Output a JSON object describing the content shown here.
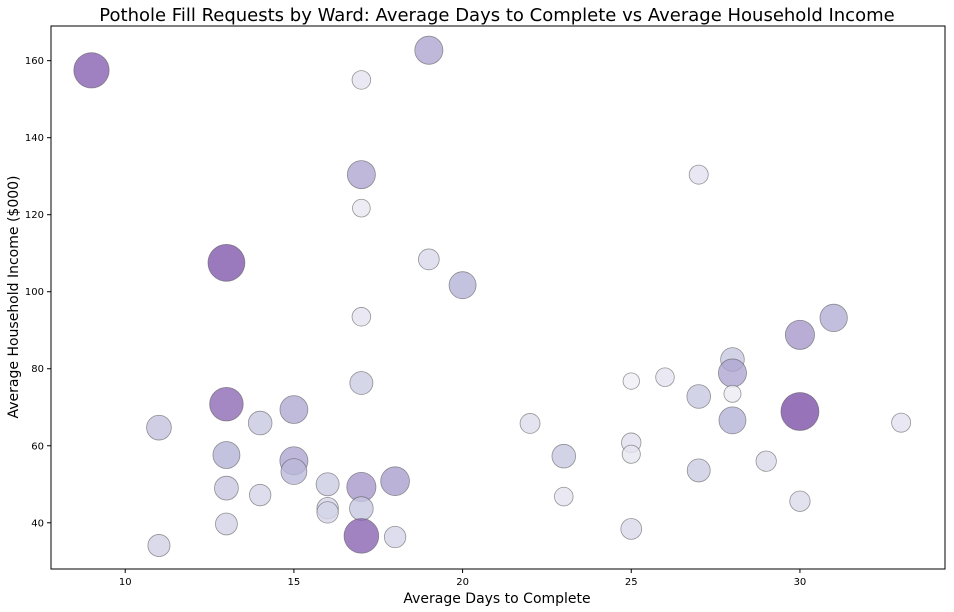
{
  "chart_data": {
    "type": "scatter",
    "title": "Pothole Fill Requests by Ward: Average Days to Complete vs Average Household Income",
    "xlabel": "Average Days to Complete",
    "ylabel": "Average Household Income ($000)",
    "xlim": [
      7.8,
      34.3
    ],
    "ylim": [
      28,
      169
    ],
    "xticks": [
      10,
      15,
      20,
      25,
      30
    ],
    "yticks": [
      40,
      60,
      80,
      100,
      120,
      140,
      160
    ],
    "grid": false,
    "bubble_size_range": [
      0,
      1
    ],
    "colormap": [
      "#f2f0f7",
      "#d4d4e8",
      "#b4b2d6",
      "#8f6db8",
      "#7a4da6"
    ],
    "points": [
      {
        "x": 9,
        "y": 157.5,
        "s": 0.88
      },
      {
        "x": 11,
        "y": 64.7,
        "s": 0.4
      },
      {
        "x": 11,
        "y": 34.1,
        "s": 0.28
      },
      {
        "x": 13,
        "y": 107.5,
        "s": 0.95
      },
      {
        "x": 13,
        "y": 70.8,
        "s": 0.8
      },
      {
        "x": 13,
        "y": 57.6,
        "s": 0.5
      },
      {
        "x": 13,
        "y": 49.0,
        "s": 0.36
      },
      {
        "x": 13,
        "y": 39.7,
        "s": 0.27
      },
      {
        "x": 14,
        "y": 65.9,
        "s": 0.35
      },
      {
        "x": 14,
        "y": 47.2,
        "s": 0.25
      },
      {
        "x": 15,
        "y": 69.4,
        "s": 0.54
      },
      {
        "x": 15,
        "y": 56.1,
        "s": 0.55
      },
      {
        "x": 15,
        "y": 53.3,
        "s": 0.45
      },
      {
        "x": 16,
        "y": 50.0,
        "s": 0.32
      },
      {
        "x": 16,
        "y": 43.8,
        "s": 0.25
      },
      {
        "x": 16,
        "y": 42.7,
        "s": 0.25
      },
      {
        "x": 17,
        "y": 155.0,
        "s": 0.12
      },
      {
        "x": 17,
        "y": 130.4,
        "s": 0.55
      },
      {
        "x": 17,
        "y": 121.7,
        "s": 0.08
      },
      {
        "x": 17,
        "y": 93.5,
        "s": 0.12
      },
      {
        "x": 17,
        "y": 76.3,
        "s": 0.32
      },
      {
        "x": 17,
        "y": 49.3,
        "s": 0.6
      },
      {
        "x": 17,
        "y": 43.7,
        "s": 0.35
      },
      {
        "x": 17,
        "y": 36.6,
        "s": 0.85
      },
      {
        "x": 18,
        "y": 50.8,
        "s": 0.58
      },
      {
        "x": 18,
        "y": 36.3,
        "s": 0.25
      },
      {
        "x": 19,
        "y": 162.7,
        "s": 0.55
      },
      {
        "x": 19,
        "y": 108.4,
        "s": 0.22
      },
      {
        "x": 20,
        "y": 101.7,
        "s": 0.5
      },
      {
        "x": 22,
        "y": 65.8,
        "s": 0.18
      },
      {
        "x": 23,
        "y": 57.3,
        "s": 0.35
      },
      {
        "x": 23,
        "y": 46.8,
        "s": 0.12
      },
      {
        "x": 25,
        "y": 76.8,
        "s": 0.02
      },
      {
        "x": 25,
        "y": 60.8,
        "s": 0.16
      },
      {
        "x": 25,
        "y": 57.8,
        "s": 0.1
      },
      {
        "x": 25,
        "y": 38.4,
        "s": 0.22
      },
      {
        "x": 26,
        "y": 77.8,
        "s": 0.12
      },
      {
        "x": 27,
        "y": 130.4,
        "s": 0.14
      },
      {
        "x": 27,
        "y": 72.8,
        "s": 0.35
      },
      {
        "x": 27,
        "y": 53.6,
        "s": 0.32
      },
      {
        "x": 28,
        "y": 82.4,
        "s": 0.35
      },
      {
        "x": 28,
        "y": 78.9,
        "s": 0.55
      },
      {
        "x": 28,
        "y": 73.5,
        "s": 0.05
      },
      {
        "x": 28,
        "y": 66.6,
        "s": 0.5
      },
      {
        "x": 29,
        "y": 56.0,
        "s": 0.2
      },
      {
        "x": 30,
        "y": 88.8,
        "s": 0.6
      },
      {
        "x": 30,
        "y": 68.9,
        "s": 1.0
      },
      {
        "x": 30,
        "y": 45.6,
        "s": 0.2
      },
      {
        "x": 31,
        "y": 93.2,
        "s": 0.52
      },
      {
        "x": 33,
        "y": 66.0,
        "s": 0.14
      }
    ]
  }
}
